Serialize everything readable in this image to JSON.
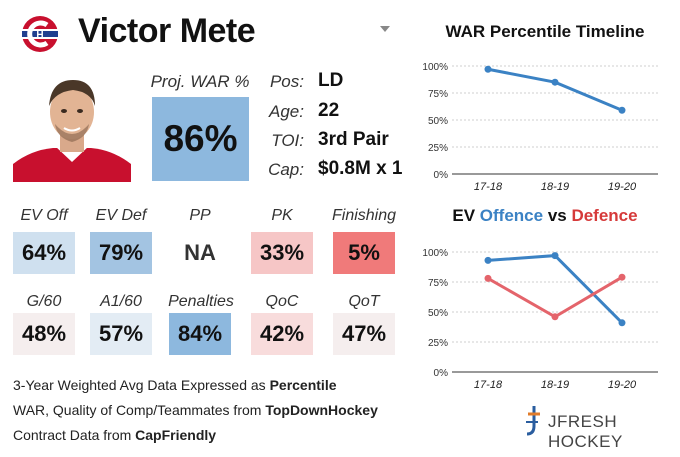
{
  "header": {
    "player_name": "Victor Mete"
  },
  "projection": {
    "label": "Proj. WAR %",
    "value": "86%",
    "color": "#8db8de"
  },
  "info": [
    {
      "label": "Pos:",
      "value": "LD"
    },
    {
      "label": "Age:",
      "value": "22"
    },
    {
      "label": "TOI:",
      "value": "3rd Pair"
    },
    {
      "label": "Cap:",
      "value": "$0.8M x 1"
    }
  ],
  "stats_row1": [
    {
      "label": "EV Off",
      "value": "64%",
      "color": "#cfe0ef"
    },
    {
      "label": "EV Def",
      "value": "79%",
      "color": "#a3c4e2"
    },
    {
      "label": "PP",
      "value": "NA",
      "color": "#ffffff"
    },
    {
      "label": "PK",
      "value": "33%",
      "color": "#f6c6c6"
    },
    {
      "label": "Finishing",
      "value": "5%",
      "color": "#f07a7a"
    }
  ],
  "stats_row2": [
    {
      "label": "G/60",
      "value": "48%",
      "color": "#f5eeee"
    },
    {
      "label": "A1/60",
      "value": "57%",
      "color": "#e3ecf4"
    },
    {
      "label": "Penalties",
      "value": "84%",
      "color": "#8db8de"
    },
    {
      "label": "QoC",
      "value": "42%",
      "color": "#f8dcdc"
    },
    {
      "label": "QoT",
      "value": "47%",
      "color": "#f5eeee"
    }
  ],
  "footer": {
    "line1_pre": "3-Year Weighted Avg Data Expressed as ",
    "line1_bold": "Percentile",
    "line2_pre": "WAR, Quality of Comp/Teammates from ",
    "line2_bold": "TopDownHockey",
    "line3_pre": "Contract Data from ",
    "line3_bold": "CapFriendly"
  },
  "brand": {
    "text": "JFRESH HOCKEY"
  },
  "chart_data": [
    {
      "type": "line",
      "title": "WAR Percentile Timeline",
      "categories": [
        "17-18",
        "18-19",
        "19-20"
      ],
      "yticks": [
        "0%",
        "25%",
        "50%",
        "75%",
        "100%"
      ],
      "ylim": [
        0,
        100
      ],
      "series": [
        {
          "values": [
            97,
            85,
            59
          ],
          "color": "#3b82c4"
        }
      ]
    },
    {
      "type": "line",
      "title_parts": {
        "a": "EV ",
        "b": "Offence",
        "c": " vs ",
        "d": "Defence"
      },
      "categories": [
        "17-18",
        "18-19",
        "19-20"
      ],
      "yticks": [
        "0%",
        "25%",
        "50%",
        "75%",
        "100%"
      ],
      "ylim": [
        0,
        100
      ],
      "series": [
        {
          "name": "Offence",
          "values": [
            93,
            97,
            41
          ],
          "color": "#3b82c4"
        },
        {
          "name": "Defence",
          "values": [
            78,
            46,
            79
          ],
          "color": "#e4646b"
        }
      ]
    }
  ]
}
